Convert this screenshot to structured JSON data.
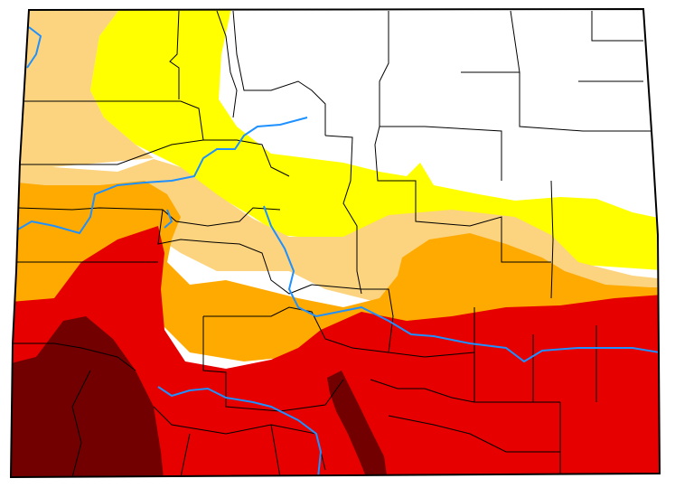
{
  "map": {
    "region": "Colorado",
    "style": "drought monitor choropleth with county boundaries",
    "legend_visible": false,
    "title_visible": false
  },
  "drought_categories": [
    {
      "code": "none",
      "color": "#ffffff"
    },
    {
      "code": "D0",
      "color": "#ffff00"
    },
    {
      "code": "D1",
      "color": "#fcd37f"
    },
    {
      "code": "D2",
      "color": "#ffaa00"
    },
    {
      "code": "D3",
      "color": "#e60000"
    },
    {
      "code": "D4",
      "color": "#730000"
    }
  ],
  "colors": {
    "river": "#1e90ff",
    "county_line": "#000000",
    "background": "#ffffff"
  }
}
